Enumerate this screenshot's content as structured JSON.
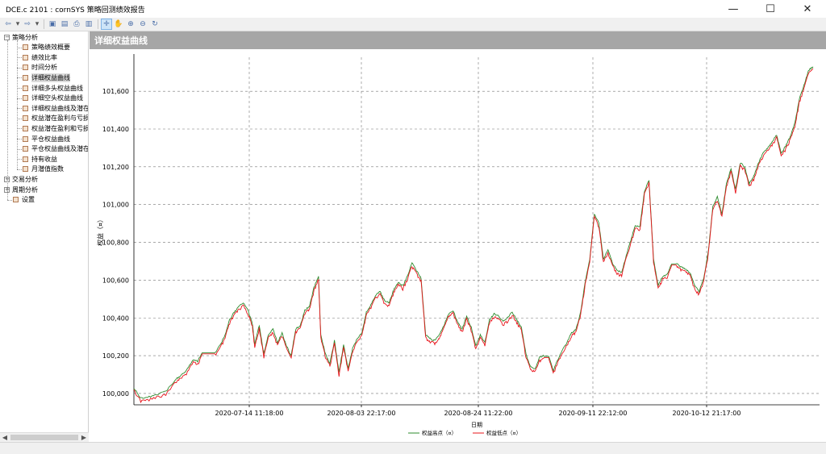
{
  "window": {
    "title": "DCE.c 2101 : cornSYS 策略回测绩效报告",
    "controls": {
      "minimize": "—",
      "maximize": "☐",
      "close": "✕"
    }
  },
  "toolbar": {
    "buttons": [
      {
        "icon": "back-icon",
        "glyph": "⇦"
      },
      {
        "icon": "dropdown-icon",
        "glyph": "▾"
      },
      {
        "icon": "forward-icon",
        "glyph": "⇨"
      },
      {
        "icon": "dropdown-icon",
        "glyph": "▾"
      },
      {
        "icon": "save-icon",
        "glyph": "▣"
      },
      {
        "icon": "export-icon",
        "glyph": "▤"
      },
      {
        "icon": "print-icon",
        "glyph": "⎙"
      },
      {
        "icon": "view-icon",
        "glyph": "▥"
      },
      {
        "icon": "crosshair-icon",
        "glyph": "✛"
      },
      {
        "icon": "pan-hand-icon",
        "glyph": "✋"
      },
      {
        "icon": "zoom-in-icon",
        "glyph": "⊕"
      },
      {
        "icon": "zoom-out-icon",
        "glyph": "⊖"
      },
      {
        "icon": "reset-icon",
        "glyph": "↻"
      }
    ]
  },
  "sidebar": {
    "groups": [
      {
        "label": "策略分析",
        "expanded": true,
        "items": [
          "策略绩效概要",
          "绩效比率",
          "时间分析",
          "详细权益曲线",
          "详细多头权益曲线",
          "详细空头权益曲线",
          "详细权益曲线及潜在",
          "权益潜在盈利与亏损",
          "权益潜在盈利和亏损",
          "平仓权益曲线",
          "平仓权益曲线及潜在",
          "持有收益",
          "月潜值指数"
        ],
        "selected": "详细权益曲线"
      },
      {
        "label": "交易分析",
        "expanded": false
      },
      {
        "label": "周期分析",
        "expanded": false
      }
    ],
    "settings_label": "设置"
  },
  "section": {
    "title": "详细权益曲线"
  },
  "chart_data": {
    "type": "line",
    "title": "详细权益曲线",
    "xlabel": "日期",
    "ylabel": "权益（¤）",
    "ylim": [
      99940,
      101780
    ],
    "yticks": [
      "100,000",
      "100,200",
      "100,400",
      "100,600",
      "100,800",
      "101,000",
      "101,200",
      "101,400",
      "101,600"
    ],
    "ytick_values": [
      100000,
      100200,
      100400,
      100600,
      100800,
      101000,
      101200,
      101400,
      101600
    ],
    "xticks": [
      "2020-07-14 11:18:00",
      "2020-08-03 22:17:00",
      "2020-08-24 11:22:00",
      "2020-09-11 22:12:00",
      "2020-10-12 21:17:00"
    ],
    "grid": true,
    "legend": "bottom-center",
    "series": [
      {
        "name": "权益高点（¤）",
        "color": "#2e8b2e"
      },
      {
        "name": "权益低点（¤）",
        "color": "#e8141b"
      }
    ],
    "equity_path": [
      [
        0,
        100020
      ],
      [
        3,
        99965
      ],
      [
        6,
        99970
      ],
      [
        10,
        99985
      ],
      [
        14,
        100000
      ],
      [
        18,
        100060
      ],
      [
        20,
        100080
      ],
      [
        23,
        100110
      ],
      [
        26,
        100170
      ],
      [
        28,
        100160
      ],
      [
        30,
        100210
      ],
      [
        33,
        100210
      ],
      [
        36,
        100210
      ],
      [
        38,
        100250
      ],
      [
        40,
        100300
      ],
      [
        42,
        100380
      ],
      [
        44,
        100420
      ],
      [
        46,
        100450
      ],
      [
        48,
        100470
      ],
      [
        50,
        100430
      ],
      [
        52,
        100360
      ],
      [
        53,
        100250
      ],
      [
        55,
        100350
      ],
      [
        57,
        100200
      ],
      [
        59,
        100300
      ],
      [
        61,
        100330
      ],
      [
        63,
        100260
      ],
      [
        65,
        100310
      ],
      [
        67,
        100240
      ],
      [
        69,
        100190
      ],
      [
        71,
        100330
      ],
      [
        73,
        100350
      ],
      [
        75,
        100430
      ],
      [
        77,
        100450
      ],
      [
        79,
        100550
      ],
      [
        81,
        100610
      ],
      [
        82,
        100300
      ],
      [
        84,
        100200
      ],
      [
        86,
        100150
      ],
      [
        88,
        100270
      ],
      [
        90,
        100100
      ],
      [
        92,
        100250
      ],
      [
        94,
        100120
      ],
      [
        96,
        100230
      ],
      [
        98,
        100280
      ],
      [
        100,
        100310
      ],
      [
        102,
        100420
      ],
      [
        104,
        100460
      ],
      [
        106,
        100510
      ],
      [
        108,
        100530
      ],
      [
        110,
        100480
      ],
      [
        112,
        100470
      ],
      [
        114,
        100540
      ],
      [
        116,
        100580
      ],
      [
        118,
        100560
      ],
      [
        120,
        100610
      ],
      [
        122,
        100680
      ],
      [
        124,
        100640
      ],
      [
        126,
        100600
      ],
      [
        128,
        100300
      ],
      [
        130,
        100280
      ],
      [
        132,
        100270
      ],
      [
        134,
        100300
      ],
      [
        136,
        100350
      ],
      [
        138,
        100410
      ],
      [
        140,
        100430
      ],
      [
        142,
        100370
      ],
      [
        144,
        100330
      ],
      [
        146,
        100400
      ],
      [
        148,
        100340
      ],
      [
        150,
        100240
      ],
      [
        152,
        100300
      ],
      [
        154,
        100260
      ],
      [
        156,
        100380
      ],
      [
        158,
        100410
      ],
      [
        160,
        100400
      ],
      [
        162,
        100370
      ],
      [
        164,
        100390
      ],
      [
        166,
        100420
      ],
      [
        168,
        100380
      ],
      [
        170,
        100340
      ],
      [
        172,
        100200
      ],
      [
        174,
        100130
      ],
      [
        176,
        100120
      ],
      [
        178,
        100180
      ],
      [
        180,
        100190
      ],
      [
        182,
        100190
      ],
      [
        184,
        100110
      ],
      [
        186,
        100170
      ],
      [
        188,
        100220
      ],
      [
        190,
        100260
      ],
      [
        192,
        100310
      ],
      [
        194,
        100330
      ],
      [
        196,
        100420
      ],
      [
        198,
        100580
      ],
      [
        200,
        100700
      ],
      [
        202,
        100940
      ],
      [
        204,
        100890
      ],
      [
        206,
        100700
      ],
      [
        208,
        100750
      ],
      [
        210,
        100680
      ],
      [
        212,
        100640
      ],
      [
        214,
        100630
      ],
      [
        216,
        100720
      ],
      [
        218,
        100800
      ],
      [
        220,
        100880
      ],
      [
        222,
        100870
      ],
      [
        224,
        101060
      ],
      [
        226,
        101120
      ],
      [
        228,
        100700
      ],
      [
        230,
        100560
      ],
      [
        232,
        100610
      ],
      [
        234,
        100620
      ],
      [
        236,
        100680
      ],
      [
        238,
        100680
      ],
      [
        240,
        100660
      ],
      [
        242,
        100650
      ],
      [
        244,
        100630
      ],
      [
        246,
        100560
      ],
      [
        248,
        100530
      ],
      [
        250,
        100600
      ],
      [
        252,
        100740
      ],
      [
        254,
        100980
      ],
      [
        256,
        101030
      ],
      [
        258,
        100940
      ],
      [
        260,
        101100
      ],
      [
        262,
        101180
      ],
      [
        264,
        101070
      ],
      [
        266,
        101210
      ],
      [
        268,
        101190
      ],
      [
        270,
        101100
      ],
      [
        272,
        101140
      ],
      [
        274,
        101210
      ],
      [
        276,
        101260
      ],
      [
        278,
        101290
      ],
      [
        280,
        101320
      ],
      [
        282,
        101360
      ],
      [
        284,
        101260
      ],
      [
        286,
        101300
      ],
      [
        288,
        101350
      ],
      [
        290,
        101420
      ],
      [
        292,
        101550
      ],
      [
        294,
        101620
      ],
      [
        296,
        101700
      ],
      [
        298,
        101720
      ]
    ]
  }
}
